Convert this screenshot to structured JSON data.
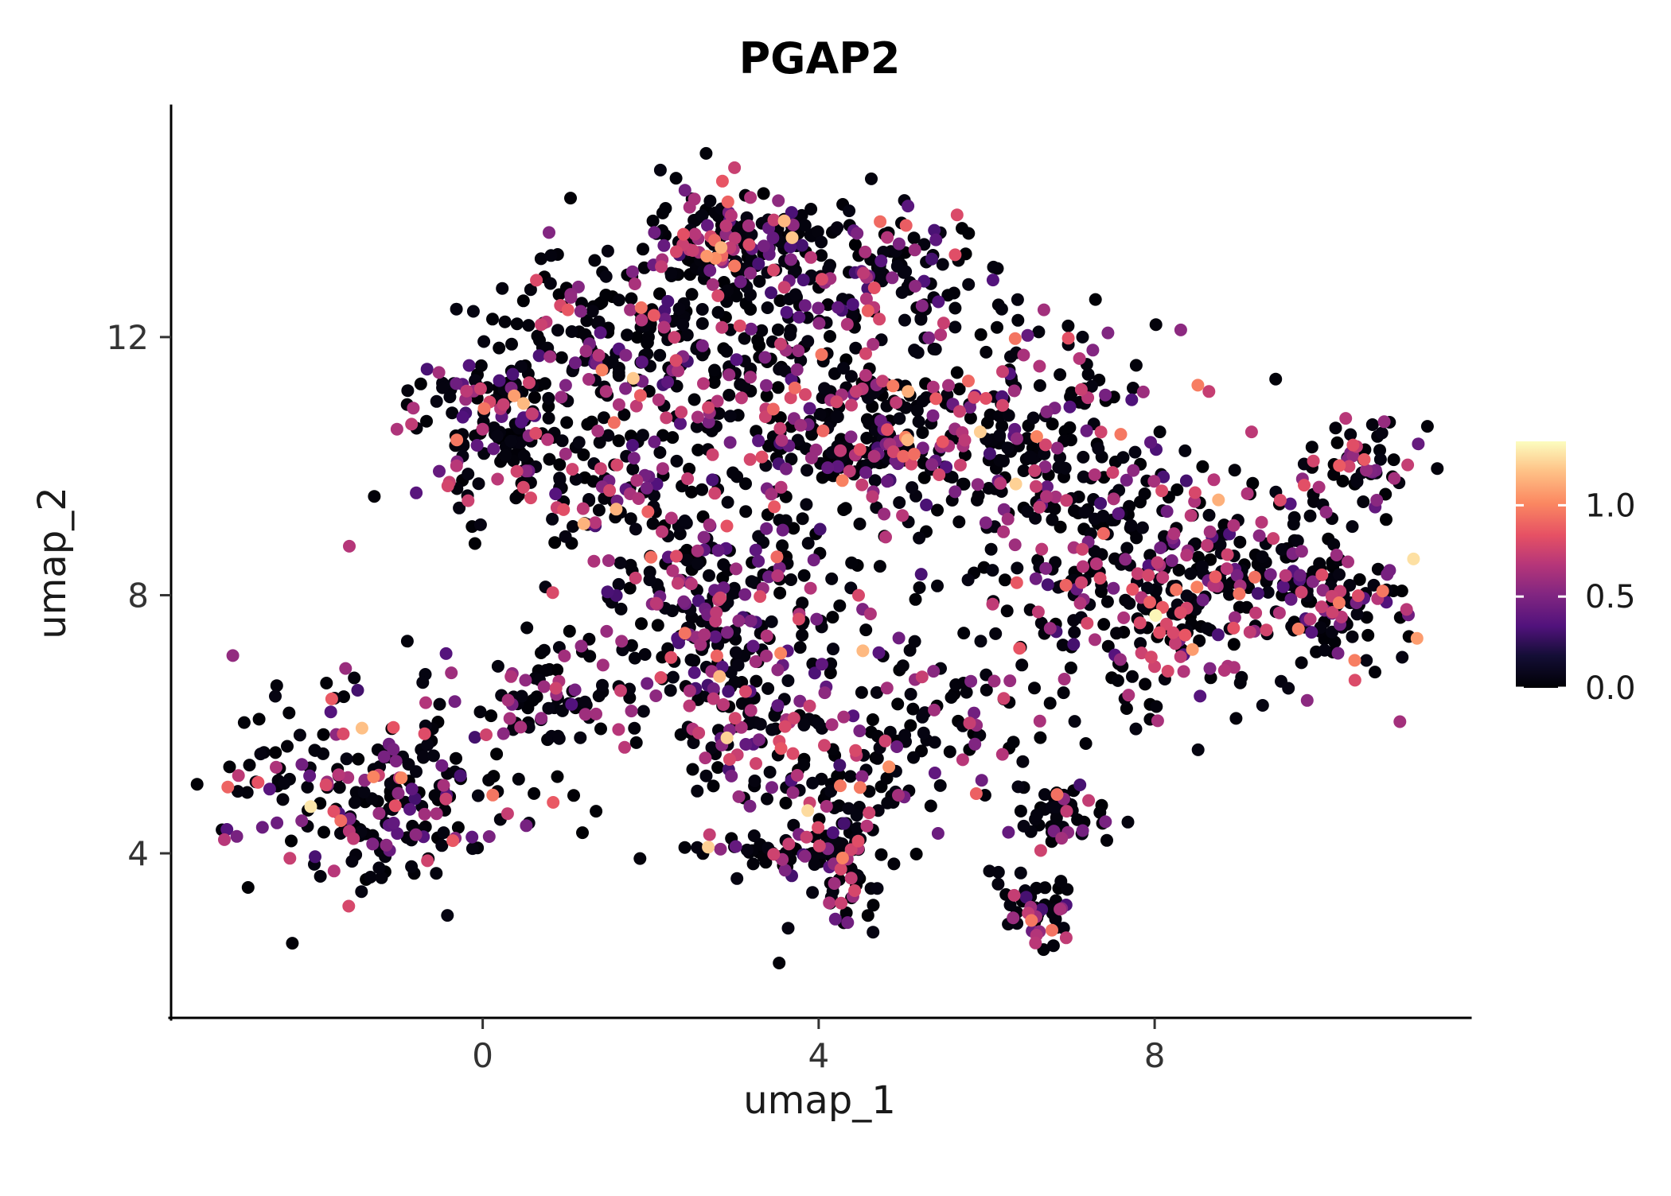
{
  "chart_data": {
    "type": "scatter",
    "title": "PGAP2",
    "xlabel": "umap_1",
    "ylabel": "umap_2",
    "xlim": [
      -3.71,
      11.76
    ],
    "ylim": [
      1.45,
      15.56
    ],
    "x_ticks": [
      0,
      4,
      8
    ],
    "y_ticks": [
      4,
      8,
      12
    ],
    "grid": false,
    "legend_position": "right",
    "point_radius": 8,
    "colors": {
      "background": "#ffffff",
      "axis_line": "#000000",
      "tick_text": "#333333",
      "label_text": "#1a1a1a",
      "title_text": "#000000",
      "colorbar_tick": "#ffffff"
    },
    "colormap": [
      {
        "t": 0.0,
        "color": "#000004"
      },
      {
        "t": 0.13,
        "color": "#140e36"
      },
      {
        "t": 0.25,
        "color": "#51127c"
      },
      {
        "t": 0.38,
        "color": "#822681"
      },
      {
        "t": 0.5,
        "color": "#b63679"
      },
      {
        "t": 0.62,
        "color": "#e65164"
      },
      {
        "t": 0.75,
        "color": "#fb8861"
      },
      {
        "t": 0.88,
        "color": "#fec287"
      },
      {
        "t": 1.0,
        "color": "#fcfdbf"
      }
    ],
    "colorbar": {
      "vmin": 0.0,
      "vmax": 1.35,
      "ticks": [
        0.0,
        0.5,
        1.0
      ],
      "tick_labels": [
        "0.0",
        "0.5",
        "1.0"
      ]
    },
    "expression_mixture": [
      {
        "p": 0.662,
        "min": 0.0,
        "max": 0.05
      },
      {
        "p": 0.12,
        "min": 0.3,
        "max": 0.5
      },
      {
        "p": 0.178,
        "min": 0.5,
        "max": 0.8
      },
      {
        "p": 0.03,
        "min": 0.8,
        "max": 1.0
      },
      {
        "p": 0.008,
        "min": 1.0,
        "max": 1.2
      },
      {
        "p": 0.002,
        "min": 1.2,
        "max": 1.35
      }
    ],
    "seed": 77,
    "clusters": [
      {
        "name": "ridge-top",
        "cx": 2.9,
        "cy": 13.5,
        "sx": 0.55,
        "sy": 0.38,
        "n": 150
      },
      {
        "name": "ridge-right",
        "cx": 4.6,
        "cy": 13.0,
        "sx": 0.85,
        "sy": 0.5,
        "n": 140
      },
      {
        "name": "upper-left-lobe",
        "cx": 1.6,
        "cy": 12.1,
        "sx": 0.8,
        "sy": 0.65,
        "n": 150
      },
      {
        "name": "left-arm",
        "cx": 0.15,
        "cy": 10.7,
        "sx": 0.55,
        "sy": 0.65,
        "n": 150
      },
      {
        "name": "left-mid",
        "cx": 1.5,
        "cy": 9.9,
        "sx": 0.6,
        "sy": 0.7,
        "n": 90
      },
      {
        "name": "upper-mid",
        "cx": 3.0,
        "cy": 11.5,
        "sx": 0.9,
        "sy": 0.85,
        "n": 170
      },
      {
        "name": "center-blob",
        "cx": 4.6,
        "cy": 10.3,
        "sx": 0.7,
        "sy": 0.6,
        "n": 170
      },
      {
        "name": "center-left-mid",
        "cx": 2.7,
        "cy": 7.9,
        "sx": 0.75,
        "sy": 0.9,
        "n": 210
      },
      {
        "name": "mid-right-sparse",
        "cx": 5.8,
        "cy": 10.9,
        "sx": 1.0,
        "sy": 1.1,
        "n": 140
      },
      {
        "name": "right-upper",
        "cx": 7.0,
        "cy": 9.8,
        "sx": 0.8,
        "sy": 0.9,
        "n": 120
      },
      {
        "name": "right-cluster",
        "cx": 8.5,
        "cy": 8.2,
        "sx": 1.05,
        "sy": 0.85,
        "n": 340
      },
      {
        "name": "far-right-knob",
        "cx": 10.4,
        "cy": 10.05,
        "sx": 0.38,
        "sy": 0.33,
        "n": 55
      },
      {
        "name": "right-edge",
        "cx": 10.25,
        "cy": 7.9,
        "sx": 0.42,
        "sy": 0.5,
        "n": 70
      },
      {
        "name": "lower-left",
        "cx": -1.2,
        "cy": 5.0,
        "sx": 1.0,
        "sy": 0.75,
        "n": 245
      },
      {
        "name": "lower-left-bridge",
        "cx": 0.9,
        "cy": 6.4,
        "sx": 0.5,
        "sy": 0.45,
        "n": 75
      },
      {
        "name": "mid-down-strand",
        "cx": 2.9,
        "cy": 6.0,
        "sx": 0.45,
        "sy": 0.7,
        "n": 85
      },
      {
        "name": "center-bottom",
        "cx": 4.4,
        "cy": 5.6,
        "sx": 0.7,
        "sy": 0.8,
        "n": 110
      },
      {
        "name": "bottom-strand",
        "cx": 4.2,
        "cy": 3.8,
        "sx": 0.3,
        "sy": 0.6,
        "n": 70
      },
      {
        "name": "bottom-bar",
        "cx": 3.4,
        "cy": 4.05,
        "sx": 0.5,
        "sy": 0.15,
        "n": 45
      },
      {
        "name": "bottom-small",
        "cx": 6.55,
        "cy": 3.1,
        "sx": 0.28,
        "sy": 0.3,
        "n": 50
      },
      {
        "name": "small-mid",
        "cx": 6.9,
        "cy": 4.55,
        "sx": 0.32,
        "sy": 0.22,
        "n": 45
      },
      {
        "name": "sparse-fill",
        "cx": 5.0,
        "cy": 8.8,
        "sx": 2.2,
        "sy": 1.8,
        "n": 110
      },
      {
        "name": "mid-gap",
        "cx": 6.0,
        "cy": 6.2,
        "sx": 1.0,
        "sy": 0.8,
        "n": 55
      }
    ]
  }
}
